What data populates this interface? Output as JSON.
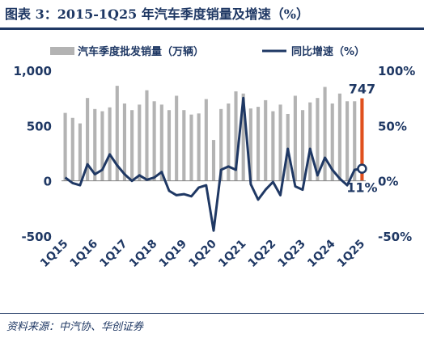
{
  "title": "图表 3：2015-1Q25 年汽车季度销量及增速（%）",
  "source": "资料来源：中汽协、华创证券",
  "colors": {
    "bar": "#b3b3b3",
    "bar_highlight": "#e0501e",
    "line": "#1f3864",
    "text": "#1f3864"
  },
  "chart_data": {
    "type": "bar",
    "categories": [
      "1Q15",
      "2Q15",
      "3Q15",
      "4Q15",
      "1Q16",
      "2Q16",
      "3Q16",
      "4Q16",
      "1Q17",
      "2Q17",
      "3Q17",
      "4Q17",
      "1Q18",
      "2Q18",
      "3Q18",
      "4Q18",
      "1Q19",
      "2Q19",
      "3Q19",
      "4Q19",
      "1Q20",
      "2Q20",
      "3Q20",
      "4Q20",
      "1Q21",
      "2Q21",
      "3Q21",
      "4Q21",
      "1Q22",
      "2Q22",
      "3Q22",
      "4Q22",
      "1Q23",
      "2Q23",
      "3Q23",
      "4Q23",
      "1Q24",
      "2Q24",
      "3Q24",
      "4Q24",
      "1Q25"
    ],
    "x_tick_labels": [
      "1Q15",
      "1Q16",
      "1Q17",
      "1Q18",
      "1Q19",
      "1Q20",
      "1Q21",
      "1Q22",
      "1Q23",
      "1Q24",
      "1Q25"
    ],
    "series": [
      {
        "name": "汽车季度批发销量（万辆）",
        "type": "bar",
        "axis": "left",
        "values": [
          615,
          570,
          520,
          750,
          650,
          630,
          665,
          860,
          700,
          640,
          690,
          820,
          720,
          690,
          640,
          770,
          640,
          600,
          610,
          740,
          370,
          650,
          700,
          810,
          790,
          655,
          670,
          730,
          630,
          690,
          605,
          770,
          640,
          710,
          750,
          850,
          700,
          790,
          720,
          720,
          747
        ]
      },
      {
        "name": "同比增速（%）",
        "type": "line",
        "axis": "right",
        "values": [
          3,
          -2,
          -4,
          15,
          6,
          10,
          24,
          14,
          6,
          0,
          5,
          1,
          3,
          8,
          -9,
          -13,
          -12,
          -14,
          -6,
          -4,
          -45,
          10,
          13,
          10,
          75,
          -3,
          -17,
          -8,
          -1,
          -13,
          29,
          -5,
          -8,
          29,
          5,
          21,
          10,
          2,
          -4,
          10,
          11
        ]
      }
    ],
    "left_axis": {
      "ylim": [
        -500,
        1000
      ],
      "ticks": [
        "-500",
        "0",
        "500",
        "1,000"
      ]
    },
    "right_axis": {
      "ylim": [
        -50,
        100
      ],
      "ticks": [
        "-50%",
        "0%",
        "50%",
        "100%"
      ]
    },
    "annotations": [
      {
        "text": "747",
        "series": 0,
        "index": 40
      },
      {
        "text": "11%",
        "series": 1,
        "index": 40
      }
    ],
    "legend_position": "top",
    "grid": false
  }
}
